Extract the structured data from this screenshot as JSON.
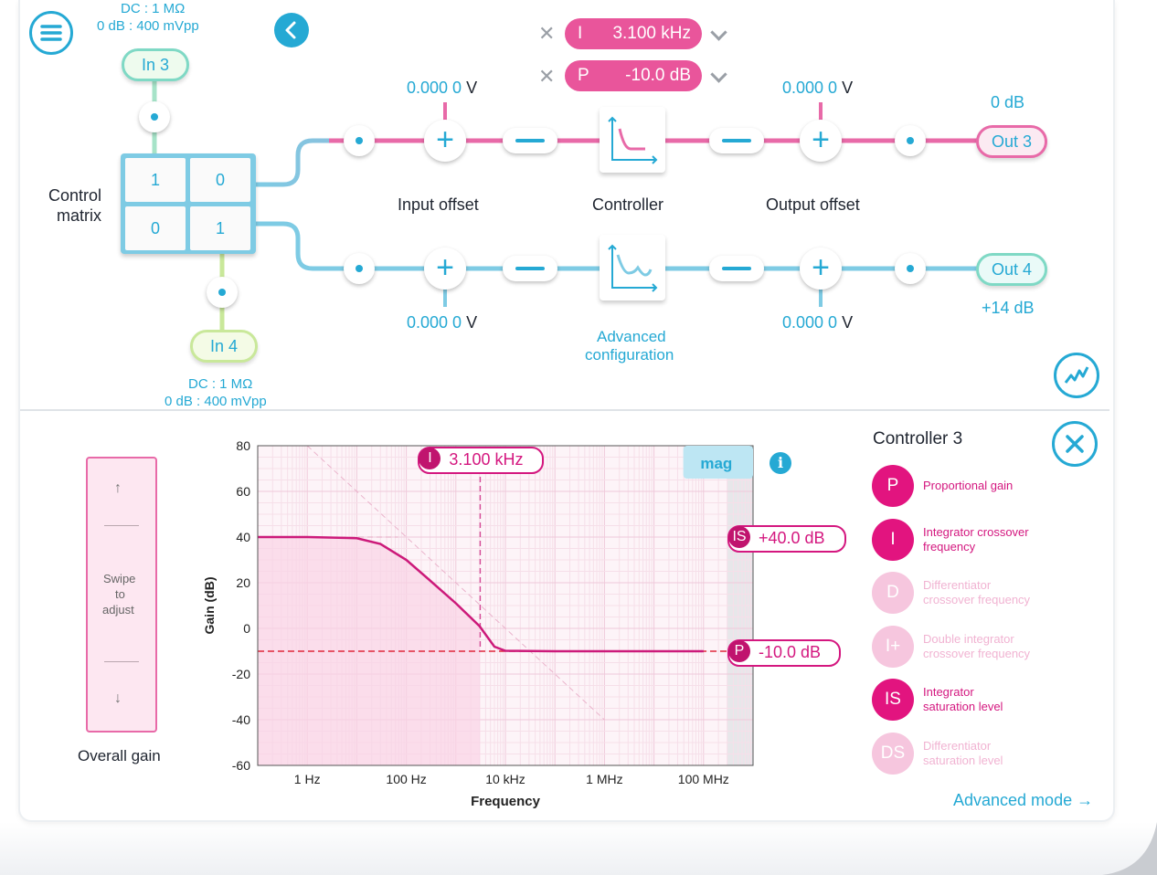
{
  "top_panel": {
    "in3": {
      "label": "In 3",
      "coupling": "DC : 1 MΩ",
      "range": "0 dB : 400 mVpp"
    },
    "in4": {
      "label": "In 4",
      "coupling": "DC : 1 MΩ",
      "range": "0 dB : 400 mVpp"
    },
    "control_matrix": {
      "label_line1": "Control",
      "label_line2": "matrix",
      "cells": [
        "1",
        "0",
        "0",
        "1"
      ]
    },
    "params": [
      {
        "key": "I",
        "value": "3.100 kHz"
      },
      {
        "key": "P",
        "value": "-10.0 dB"
      }
    ],
    "channel1": {
      "input_offset": "0.000 0",
      "input_offset_unit": "V",
      "output_offset": "0.000 0",
      "output_offset_unit": "V",
      "out_label": "Out 3",
      "out_gain": "0 dB"
    },
    "channel2": {
      "input_offset": "0.000 0",
      "input_offset_unit": "V",
      "output_offset": "0.000 0",
      "output_offset_unit": "V",
      "out_label": "Out 4",
      "out_gain": "+14 dB"
    },
    "labels": {
      "input_offset": "Input offset",
      "controller": "Controller",
      "output_offset": "Output offset",
      "advanced_line1": "Advanced",
      "advanced_line2": "configuration"
    },
    "icons": {
      "menu": "menu-icon",
      "back": "chevron-left-icon",
      "scope": "oscilloscope-icon"
    }
  },
  "overall_gain": {
    "title": "Overall gain",
    "hint_line1": "Swipe",
    "hint_line2": "to",
    "hint_line3": "adjust",
    "up_arrow": "↑",
    "down_arrow": "↓"
  },
  "chart_data": {
    "type": "line",
    "xlabel": "Frequency",
    "ylabel": "Gain (dB)",
    "x_scale": "log",
    "xlim_hz": [
      0.1,
      1000000000
    ],
    "ylim": [
      -60,
      80
    ],
    "x_ticks": [
      {
        "hz": 1,
        "label": "1 Hz"
      },
      {
        "hz": 100,
        "label": "100 Hz"
      },
      {
        "hz": 10000,
        "label": "10 kHz"
      },
      {
        "hz": 1000000,
        "label": "1 MHz"
      },
      {
        "hz": 100000000,
        "label": "100 MHz"
      }
    ],
    "y_ticks": [
      80,
      60,
      40,
      20,
      0,
      -20,
      -40,
      -60
    ],
    "grid": true,
    "series": [
      {
        "points": [
          [
            0.1,
            40
          ],
          [
            1,
            40
          ],
          [
            10,
            39.5
          ],
          [
            30,
            37
          ],
          [
            100,
            30
          ],
          [
            300,
            21
          ],
          [
            1000,
            11
          ],
          [
            3000,
            1
          ],
          [
            6000,
            -8
          ],
          [
            10000,
            -9.8
          ],
          [
            100000,
            -10
          ],
          [
            100000000,
            -10
          ]
        ]
      }
    ],
    "integrator_asymptote": [
      [
        1,
        80
      ],
      [
        1000000,
        -40
      ]
    ],
    "mag_region_start_hz": 300000000,
    "markers": {
      "I": {
        "key": "I",
        "label": "3.100 kHz",
        "hz": 3100
      },
      "IS": {
        "key": "IS",
        "label": "+40.0 dB",
        "db": 40
      },
      "P": {
        "key": "P",
        "label": "-10.0 dB",
        "db": -10
      }
    },
    "mag_label": "mag"
  },
  "controller_panel": {
    "title": "Controller 3",
    "items": [
      {
        "key": "P",
        "line1": "Proportional gain",
        "line2": "",
        "active": true
      },
      {
        "key": "I",
        "line1": "Integrator crossover",
        "line2": "frequency",
        "active": true
      },
      {
        "key": "D",
        "line1": "Differentiator",
        "line2": "crossover frequency",
        "active": false
      },
      {
        "key": "I+",
        "line1": "Double integrator",
        "line2": "crossover frequency",
        "active": false
      },
      {
        "key": "IS",
        "line1": "Integrator",
        "line2": "saturation level",
        "active": true
      },
      {
        "key": "DS",
        "line1": "Differentiator",
        "line2": "saturation level",
        "active": false
      }
    ],
    "advanced_mode": "Advanced mode",
    "advanced_arrow": "→",
    "colors": {
      "active": "#e2147f",
      "inactive": "#f6c6de",
      "active_text": "#d4177f",
      "inactive_text": "#f1b3d2"
    }
  }
}
